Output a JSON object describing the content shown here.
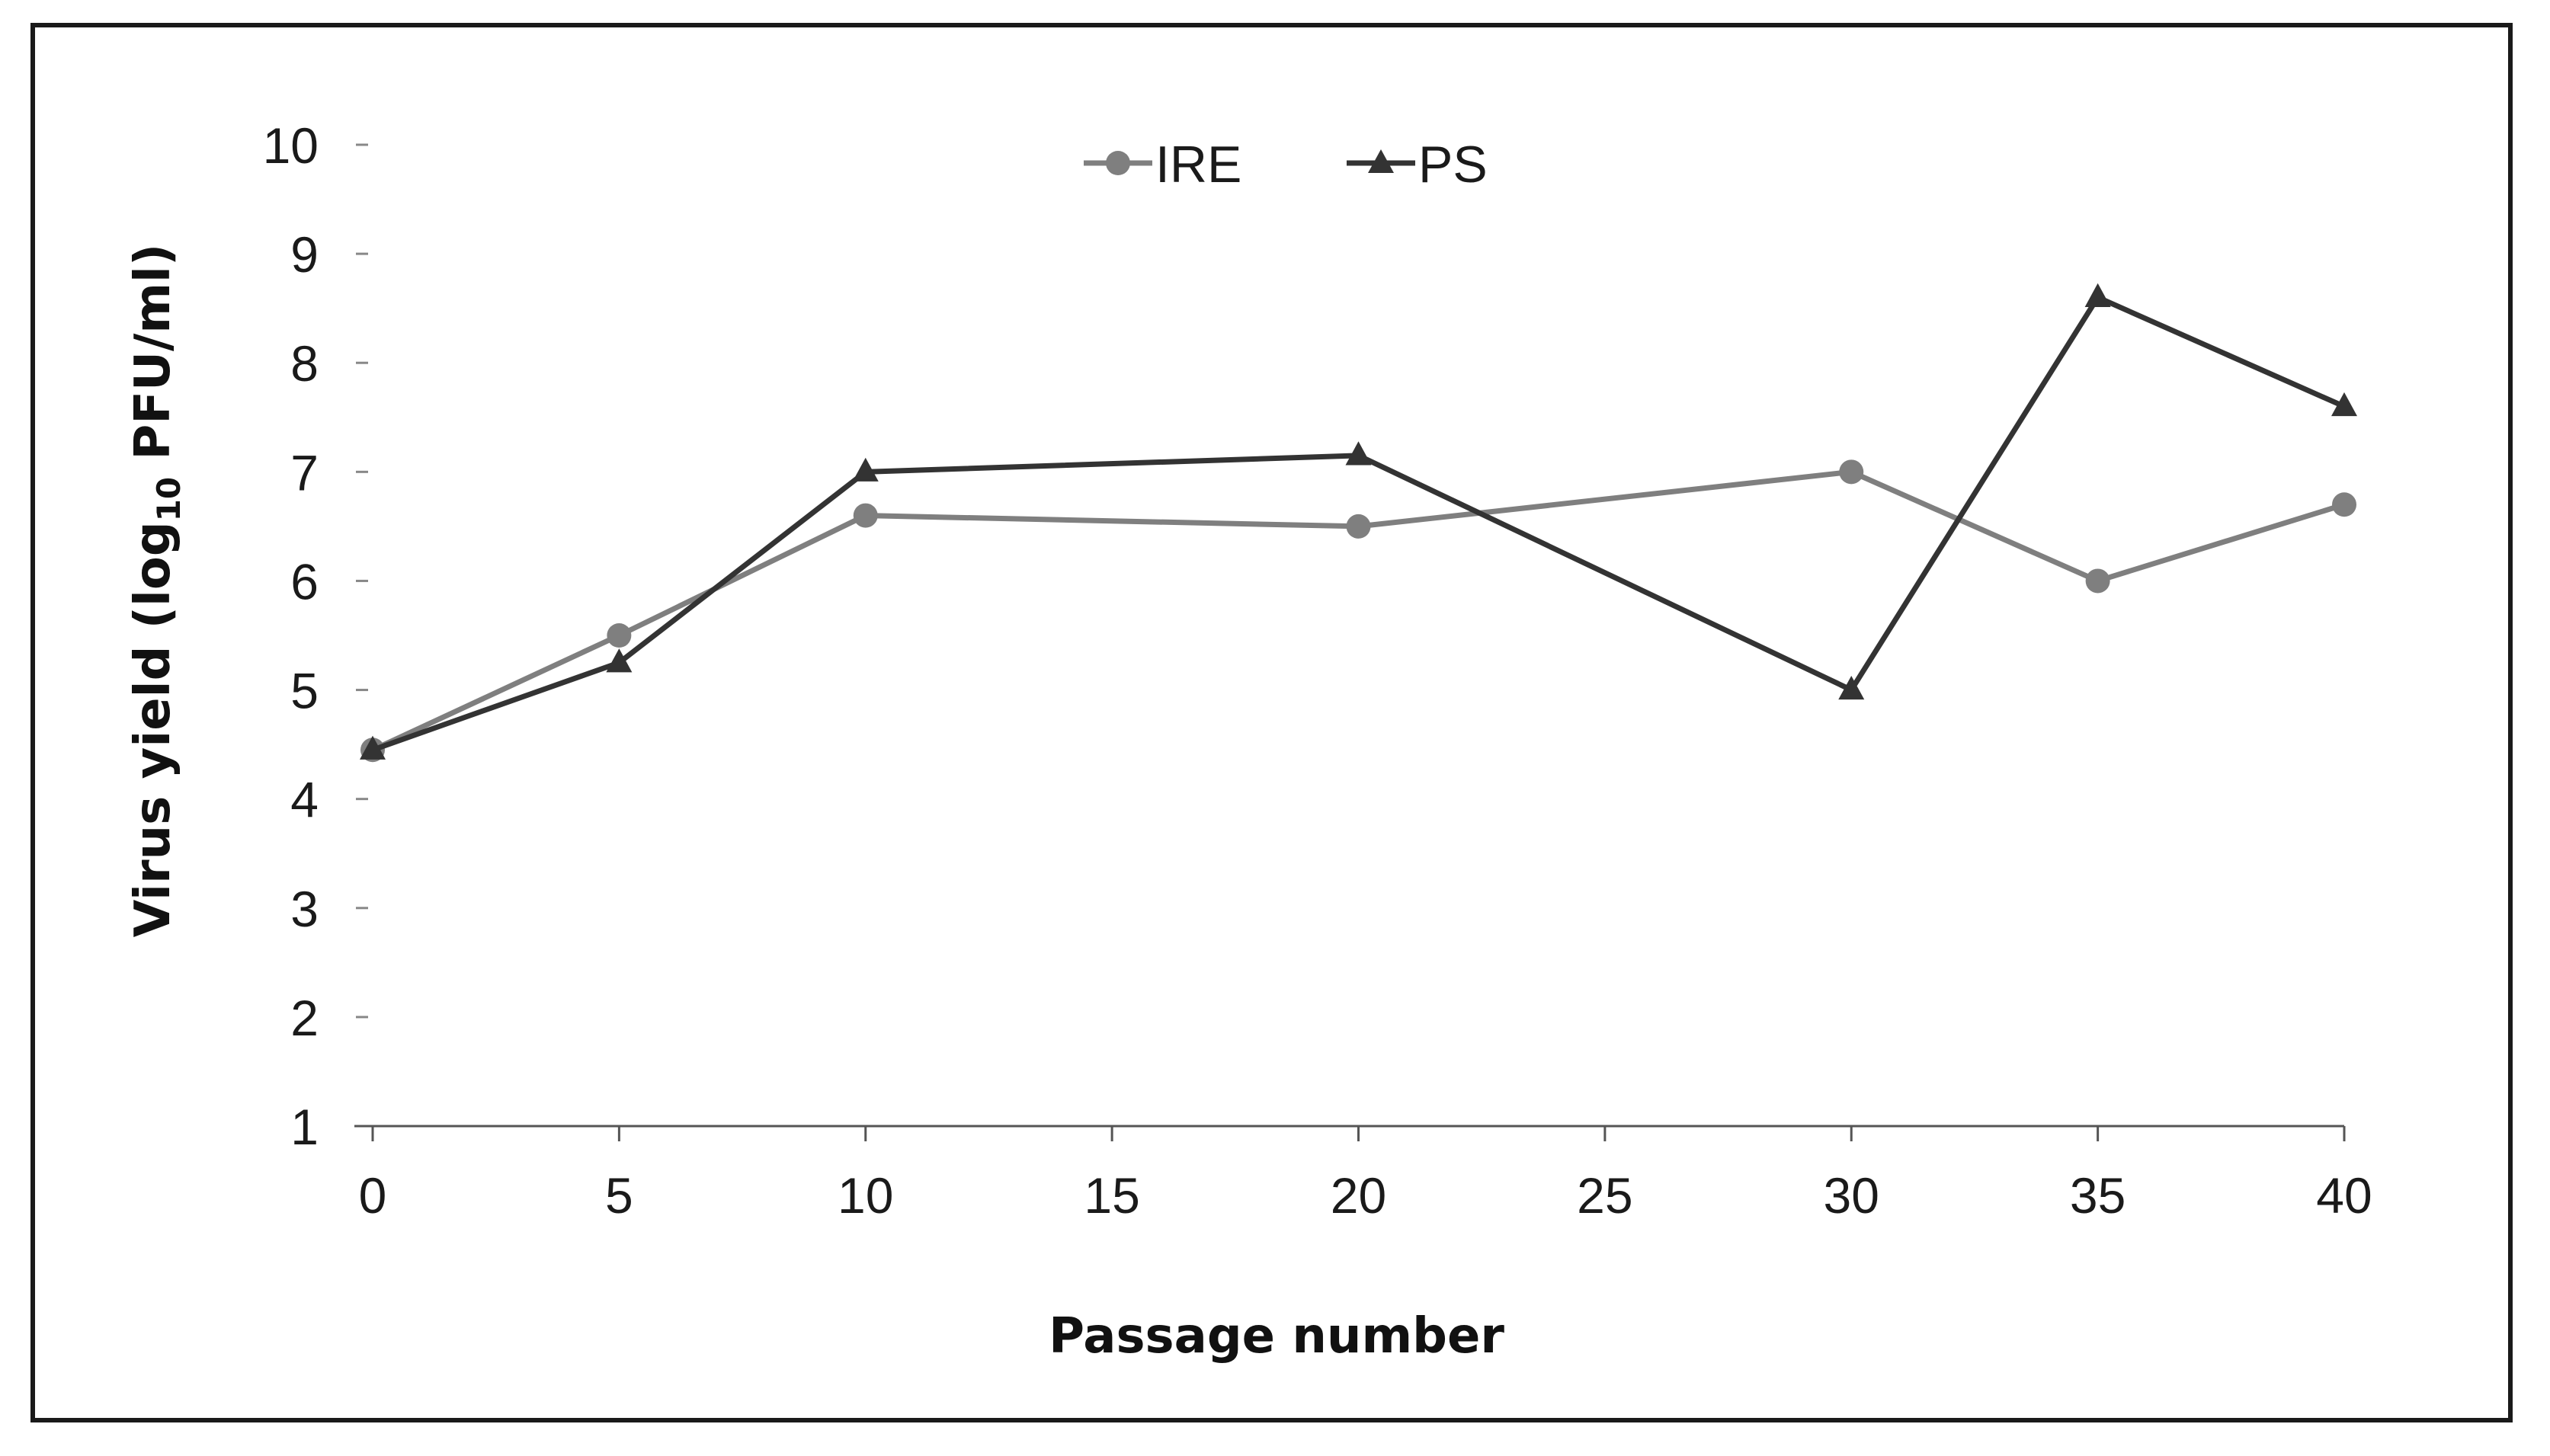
{
  "chart_data": {
    "type": "line",
    "x": [
      0,
      5,
      10,
      20,
      30,
      35,
      40
    ],
    "x_ticks": [
      "0",
      "5",
      "10",
      "15",
      "20",
      "25",
      "30",
      "35",
      "40"
    ],
    "y_ticks": [
      "1",
      "2",
      "3",
      "4",
      "5",
      "6",
      "7",
      "8",
      "9",
      "10"
    ],
    "xlim": [
      0,
      40
    ],
    "ylim": [
      1,
      10
    ],
    "xlabel": "Passage number",
    "ylabel_parts": {
      "pre": "Virus yield (log",
      "sub": "10",
      "post": " PFU/ml)"
    },
    "grid": false,
    "legend_position": "top-center",
    "series": [
      {
        "name": "IRE",
        "marker": "circle",
        "color": "#7f7f7f",
        "values": [
          4.45,
          5.5,
          6.6,
          6.5,
          7.0,
          6.0,
          6.7
        ]
      },
      {
        "name": "PS",
        "marker": "triangle",
        "color": "#333333",
        "values": [
          4.45,
          5.25,
          7.0,
          7.15,
          5.0,
          8.6,
          7.6
        ]
      }
    ]
  }
}
